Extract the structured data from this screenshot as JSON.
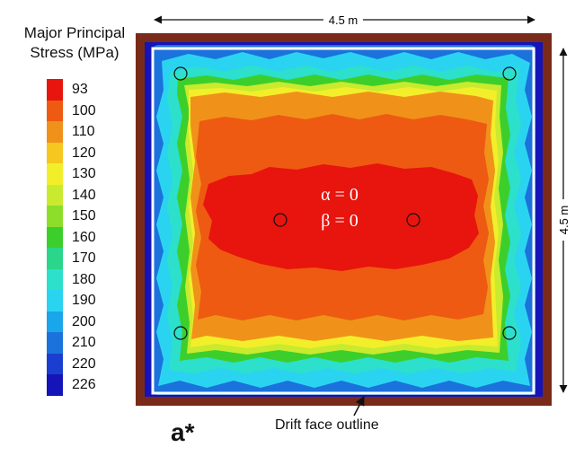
{
  "legend": {
    "title_line1": "Major Principal",
    "title_line2": "Stress (MPa)",
    "levels": [
      "93",
      "100",
      "110",
      "120",
      "130",
      "140",
      "150",
      "160",
      "170",
      "180",
      "190",
      "200",
      "210",
      "220",
      "226"
    ],
    "colors": [
      "#e8140e",
      "#ee5a12",
      "#f0921a",
      "#f6c71e",
      "#f2ef2a",
      "#c9ea2e",
      "#8cde2a",
      "#3ccf2c",
      "#2ad68a",
      "#2ce0cc",
      "#2ad4f0",
      "#1aa6ea",
      "#1b72dc",
      "#1a3fd0",
      "#1414b8"
    ]
  },
  "dimensions": {
    "top_width": "4.5 m",
    "right_height": "4.5 m"
  },
  "plot": {
    "alpha_label": "α = 0",
    "beta_label": "β = 0"
  },
  "caption": "Drift face outline",
  "panel_tag": "a*"
}
